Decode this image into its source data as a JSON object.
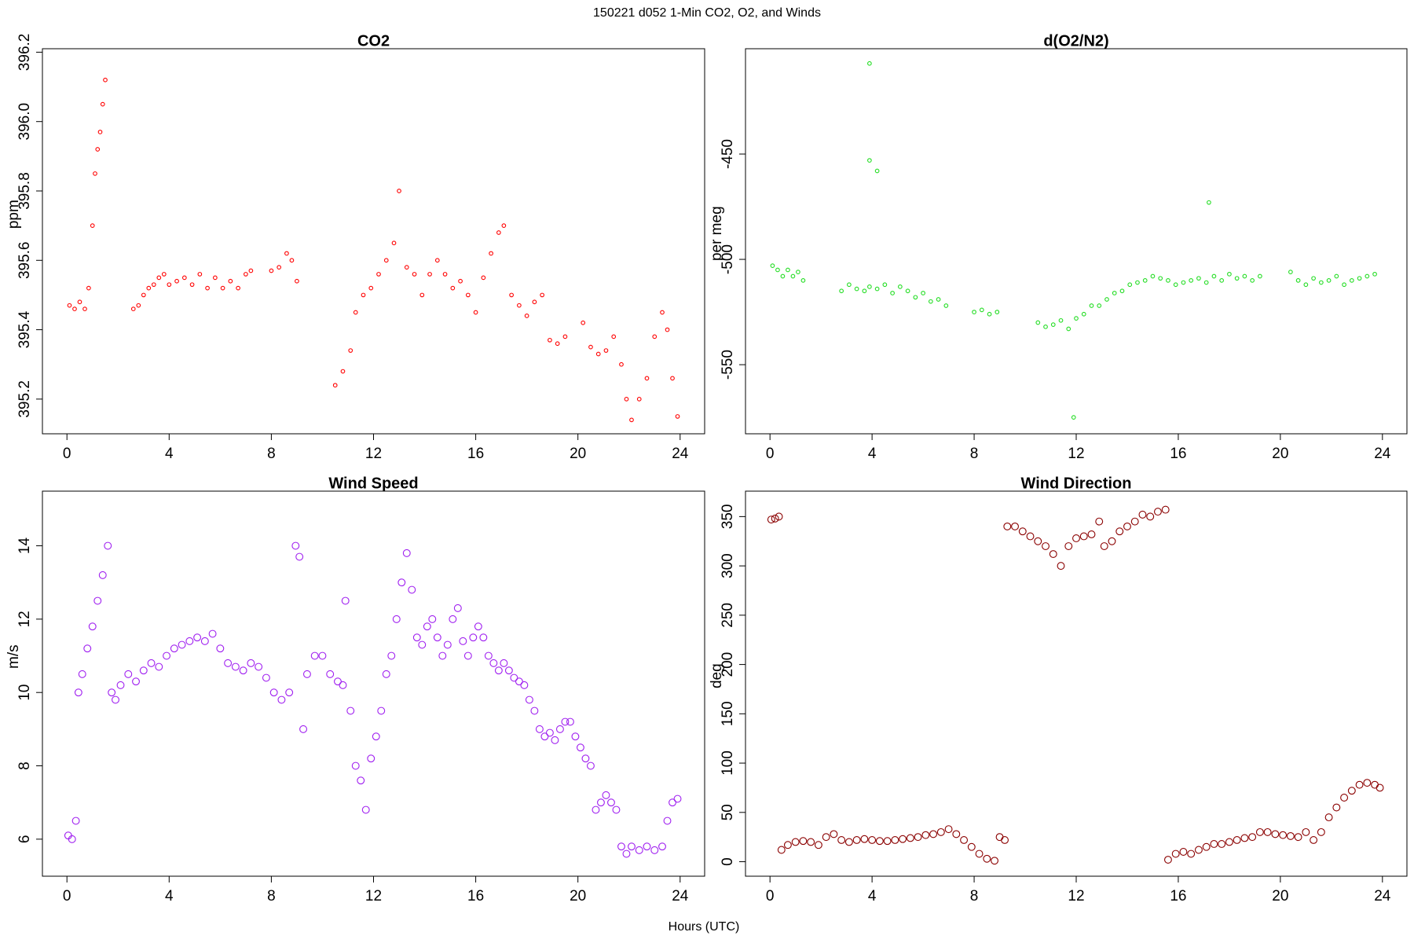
{
  "title": "150221   d052   1-Min CO2, O2, and Winds",
  "xlabel": "Hours (UTC)",
  "chart_data": [
    {
      "type": "scatter",
      "title": "CO2",
      "ylabel": "ppm",
      "color": "#ff0000",
      "xlim": [
        -0.96,
        24.96
      ],
      "ylim": [
        395.1,
        396.21
      ],
      "xticks": [
        0,
        4,
        8,
        12,
        16,
        20,
        24
      ],
      "yticks": [
        395.2,
        395.4,
        395.6,
        395.8,
        {
          "value": 396,
          "label": "396.0"
        },
        396.2
      ],
      "x": [
        0.1,
        0.3,
        0.5,
        0.7,
        0.85,
        1.0,
        1.1,
        1.2,
        1.3,
        1.4,
        1.5,
        2.6,
        2.8,
        3.0,
        3.2,
        3.4,
        3.6,
        3.8,
        4.0,
        4.3,
        4.6,
        4.9,
        5.2,
        5.5,
        5.8,
        6.1,
        6.4,
        6.7,
        7.0,
        7.2,
        8.0,
        8.3,
        8.6,
        8.8,
        9.0,
        10.5,
        10.8,
        11.1,
        11.3,
        11.6,
        11.9,
        12.2,
        12.5,
        12.8,
        13.0,
        13.3,
        13.6,
        13.9,
        14.2,
        14.5,
        14.8,
        15.1,
        15.4,
        15.7,
        16.0,
        16.3,
        16.6,
        16.9,
        17.1,
        17.4,
        17.7,
        18.0,
        18.3,
        18.6,
        18.9,
        19.2,
        19.5,
        20.2,
        20.5,
        20.8,
        21.1,
        21.4,
        21.7,
        21.9,
        22.1,
        22.4,
        22.7,
        23.0,
        23.3,
        23.5,
        23.7,
        23.9
      ],
      "values": [
        395.47,
        395.46,
        395.48,
        395.46,
        395.52,
        395.7,
        395.85,
        395.92,
        395.97,
        396.05,
        396.12,
        395.46,
        395.47,
        395.5,
        395.52,
        395.53,
        395.55,
        395.56,
        395.53,
        395.54,
        395.55,
        395.53,
        395.56,
        395.52,
        395.55,
        395.52,
        395.54,
        395.52,
        395.56,
        395.57,
        395.57,
        395.58,
        395.62,
        395.6,
        395.54,
        395.24,
        395.28,
        395.34,
        395.45,
        395.5,
        395.52,
        395.56,
        395.6,
        395.65,
        395.8,
        395.58,
        395.56,
        395.5,
        395.56,
        395.6,
        395.56,
        395.52,
        395.54,
        395.5,
        395.45,
        395.55,
        395.62,
        395.68,
        395.7,
        395.5,
        395.47,
        395.44,
        395.48,
        395.5,
        395.37,
        395.36,
        395.38,
        395.42,
        395.35,
        395.33,
        395.34,
        395.38,
        395.3,
        395.2,
        395.14,
        395.2,
        395.26,
        395.38,
        395.45,
        395.4,
        395.26,
        395.15
      ]
    },
    {
      "type": "scatter",
      "title": "d(O2/N2)",
      "ylabel": "per meg",
      "color": "#22dd22",
      "xlim": [
        -0.96,
        24.96
      ],
      "ylim": [
        -582.8,
        -400
      ],
      "xticks": [
        0,
        4,
        8,
        12,
        16,
        20,
        24
      ],
      "yticks": [
        -450,
        -500,
        -550
      ],
      "x": [
        0.1,
        0.3,
        0.5,
        0.7,
        0.9,
        1.1,
        1.3,
        2.8,
        3.1,
        3.4,
        3.7,
        3.9,
        3.9,
        3.9,
        4.2,
        4.2,
        4.5,
        4.8,
        5.1,
        5.4,
        5.7,
        6.0,
        6.3,
        6.6,
        6.9,
        8.0,
        8.3,
        8.6,
        8.9,
        10.5,
        10.8,
        11.1,
        11.4,
        11.7,
        11.9,
        12.0,
        12.3,
        12.6,
        12.9,
        13.2,
        13.5,
        13.8,
        14.1,
        14.4,
        14.7,
        15.0,
        15.3,
        15.6,
        15.9,
        16.2,
        16.5,
        16.8,
        17.1,
        17.2,
        17.4,
        17.7,
        18.0,
        18.3,
        18.6,
        18.9,
        19.2,
        20.4,
        20.7,
        21.0,
        21.3,
        21.6,
        21.9,
        22.2,
        22.5,
        22.8,
        23.1,
        23.4,
        23.7
      ],
      "values": [
        -503,
        -505,
        -508,
        -505,
        -508,
        -506,
        -510,
        -515,
        -512,
        -514,
        -515,
        -513,
        -407,
        -453,
        -514,
        -458,
        -512,
        -516,
        -513,
        -515,
        -518,
        -516,
        -520,
        -519,
        -522,
        -525,
        -524,
        -526,
        -525,
        -530,
        -532,
        -531,
        -529,
        -533,
        -575,
        -528,
        -526,
        -522,
        -522,
        -519,
        -516,
        -515,
        -512,
        -511,
        -510,
        -508,
        -509,
        -510,
        -512,
        -511,
        -510,
        -509,
        -511,
        -473,
        -508,
        -510,
        -507,
        -509,
        -508,
        -510,
        -508,
        -506,
        -510,
        -512,
        -509,
        -511,
        -510,
        -508,
        -512,
        -510,
        -509,
        -508,
        -507
      ]
    },
    {
      "type": "scatter",
      "title": "Wind Speed",
      "ylabel": "m/s",
      "color": "#a020f0",
      "xlim": [
        -0.96,
        24.96
      ],
      "ylim": [
        4.99,
        15.49
      ],
      "xticks": [
        0,
        4,
        8,
        12,
        16,
        20,
        24
      ],
      "yticks": [
        6,
        8,
        10,
        12,
        14
      ],
      "x": [
        0.05,
        0.2,
        0.35,
        0.45,
        0.6,
        0.8,
        1.0,
        1.2,
        1.4,
        1.6,
        1.75,
        1.9,
        2.1,
        2.4,
        2.7,
        3.0,
        3.3,
        3.6,
        3.9,
        4.2,
        4.5,
        4.8,
        5.1,
        5.4,
        5.7,
        6.0,
        6.3,
        6.6,
        6.9,
        7.2,
        7.5,
        7.8,
        8.1,
        8.4,
        8.7,
        8.95,
        9.1,
        9.25,
        9.4,
        9.7,
        10.0,
        10.3,
        10.6,
        10.8,
        10.9,
        11.1,
        11.3,
        11.5,
        11.7,
        11.9,
        12.1,
        12.3,
        12.5,
        12.7,
        12.9,
        13.1,
        13.3,
        13.5,
        13.7,
        13.9,
        14.1,
        14.3,
        14.5,
        14.7,
        14.9,
        15.1,
        15.3,
        15.5,
        15.7,
        15.9,
        16.1,
        16.3,
        16.5,
        16.7,
        16.9,
        17.1,
        17.3,
        17.5,
        17.7,
        17.9,
        18.1,
        18.3,
        18.5,
        18.7,
        18.9,
        19.1,
        19.3,
        19.5,
        19.7,
        19.9,
        20.1,
        20.3,
        20.5,
        20.7,
        20.9,
        21.1,
        21.3,
        21.5,
        21.7,
        21.9,
        22.1,
        22.4,
        22.7,
        23.0,
        23.3,
        23.5,
        23.7,
        23.9
      ],
      "values": [
        6.1,
        6.0,
        6.5,
        10.0,
        10.5,
        11.2,
        11.8,
        12.5,
        13.2,
        14.0,
        10.0,
        9.8,
        10.2,
        10.5,
        10.3,
        10.6,
        10.8,
        10.7,
        11.0,
        11.2,
        11.3,
        11.4,
        11.5,
        11.4,
        11.6,
        11.2,
        10.8,
        10.7,
        10.6,
        10.8,
        10.7,
        10.4,
        10.0,
        9.8,
        10.0,
        14.0,
        13.7,
        9.0,
        10.5,
        11.0,
        11.0,
        10.5,
        10.3,
        10.2,
        12.5,
        9.5,
        8.0,
        7.6,
        6.8,
        8.2,
        8.8,
        9.5,
        10.5,
        11.0,
        12.0,
        13.0,
        13.8,
        12.8,
        11.5,
        11.3,
        11.8,
        12.0,
        11.5,
        11.0,
        11.3,
        12.0,
        12.3,
        11.4,
        11.0,
        11.5,
        11.8,
        11.5,
        11.0,
        10.8,
        10.6,
        10.8,
        10.6,
        10.4,
        10.3,
        10.2,
        9.8,
        9.5,
        9.0,
        8.8,
        8.9,
        8.7,
        9.0,
        9.2,
        9.2,
        8.8,
        8.5,
        8.2,
        8.0,
        6.8,
        7.0,
        7.2,
        7.0,
        6.8,
        5.8,
        5.6,
        5.8,
        5.7,
        5.8,
        5.7,
        5.8,
        6.5,
        7.0,
        7.1
      ]
    },
    {
      "type": "scatter",
      "title": "Wind Direction",
      "ylabel": "deg",
      "color": "#8b0000",
      "xlim": [
        -0.96,
        24.96
      ],
      "ylim": [
        -14.7,
        375.8
      ],
      "xticks": [
        0,
        4,
        8,
        12,
        16,
        20,
        24
      ],
      "yticks": [
        0,
        50,
        100,
        150,
        200,
        250,
        300,
        350
      ],
      "x": [
        0.05,
        0.2,
        0.35,
        0.45,
        0.7,
        1.0,
        1.3,
        1.6,
        1.9,
        2.2,
        2.5,
        2.8,
        3.1,
        3.4,
        3.7,
        4.0,
        4.3,
        4.6,
        4.9,
        5.2,
        5.5,
        5.8,
        6.1,
        6.4,
        6.7,
        7.0,
        7.3,
        7.6,
        7.9,
        8.2,
        8.5,
        8.8,
        9.0,
        9.2,
        9.3,
        9.6,
        9.9,
        10.2,
        10.5,
        10.8,
        11.1,
        11.4,
        11.7,
        12.0,
        12.3,
        12.6,
        12.9,
        13.1,
        13.4,
        13.7,
        14.0,
        14.3,
        14.6,
        14.9,
        15.2,
        15.5,
        15.6,
        15.9,
        16.2,
        16.5,
        16.8,
        17.1,
        17.4,
        17.7,
        18.0,
        18.3,
        18.6,
        18.9,
        19.2,
        19.5,
        19.8,
        20.1,
        20.4,
        20.7,
        21.0,
        21.3,
        21.6,
        21.9,
        22.2,
        22.5,
        22.8,
        23.1,
        23.4,
        23.7,
        23.9
      ],
      "values": [
        347,
        348,
        350,
        12,
        17,
        20,
        21,
        20,
        17,
        25,
        28,
        22,
        20,
        22,
        23,
        22,
        21,
        21,
        22,
        23,
        24,
        25,
        27,
        28,
        30,
        33,
        28,
        22,
        15,
        8,
        3,
        1,
        25,
        22,
        340,
        340,
        335,
        330,
        325,
        320,
        312,
        300,
        320,
        328,
        330,
        332,
        345,
        320,
        325,
        335,
        340,
        345,
        352,
        350,
        355,
        357,
        2,
        8,
        10,
        8,
        12,
        15,
        18,
        18,
        20,
        22,
        24,
        25,
        30,
        30,
        28,
        27,
        26,
        25,
        30,
        22,
        30,
        45,
        55,
        65,
        72,
        78,
        80,
        78,
        75
      ]
    }
  ]
}
